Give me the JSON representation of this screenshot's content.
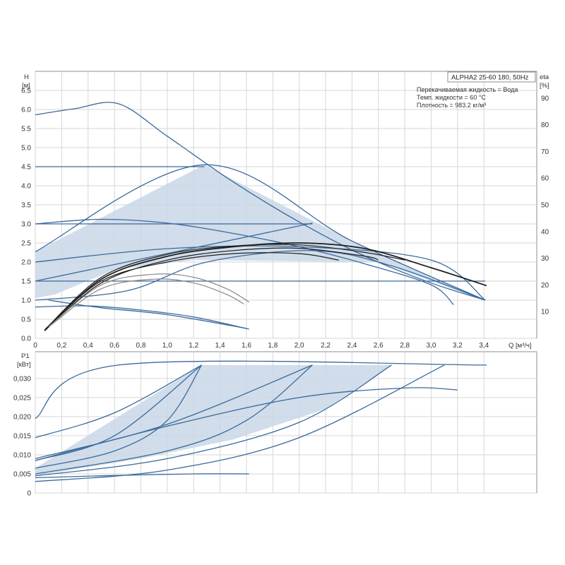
{
  "colors": {
    "curve": "#3a6a9c",
    "curve_dark": "#274e7a",
    "fill": "#c9d7e6",
    "eta_curve": "#1f1f1f",
    "eta_light": "#888888",
    "grid": "#d6d6d6",
    "frame": "#8c8c8c"
  },
  "chart_data": [
    {
      "id": "head",
      "type": "line",
      "model_label": "ALPHA2 25-60 180, 50Hz",
      "info_lines": [
        "Перекачиваемая жидкость = Вода",
        "Темп. жидкости = 60 °C",
        "Плотность = 983.2 кг/м³"
      ],
      "y_label_line1": "H",
      "y_label_line2": "[м]",
      "y2_label_line1": "eta",
      "y2_label_line2": "[%]",
      "x_label": "Q [м³/ч]",
      "xlim": [
        0,
        3.8
      ],
      "ylim": [
        0,
        7.0
      ],
      "y2lim": [
        0,
        100
      ],
      "x_ticks": [
        "0",
        "0,2",
        "0,4",
        "0,6",
        "0,8",
        "1,0",
        "1,2",
        "1,4",
        "1,6",
        "1,8",
        "2,0",
        "2,2",
        "2,4",
        "2,6",
        "2,8",
        "3,0",
        "3,2",
        "3,4"
      ],
      "y_ticks": [
        "0.0",
        "0.5",
        "1.0",
        "1.5",
        "2.0",
        "2.5",
        "3.0",
        "3.5",
        "4.0",
        "4.5",
        "5.0",
        "5.5",
        "6.0",
        "6.5"
      ],
      "y2_ticks": [
        "10",
        "20",
        "30",
        "40",
        "50",
        "60",
        "70",
        "80",
        "90"
      ],
      "area": {
        "points": [
          [
            0,
            2.27
          ],
          [
            1.28,
            4.55
          ],
          [
            2.4,
            2.55
          ],
          [
            3.4,
            1.0
          ],
          [
            2.6,
            2.0
          ],
          [
            1.2,
            2.05
          ],
          [
            0.6,
            1.8
          ],
          [
            0.15,
            1.15
          ],
          [
            0,
            1.05
          ]
        ]
      },
      "series": [
        {
          "points": [
            [
              0,
              5.86
            ],
            [
              0.3,
              6.02
            ],
            [
              0.63,
              6.15
            ],
            [
              1.0,
              5.3
            ],
            [
              1.5,
              4.1
            ],
            [
              2.0,
              3.05
            ],
            [
              2.5,
              2.15
            ],
            [
              3.0,
              1.45
            ],
            [
              3.41,
              1.0
            ]
          ]
        },
        {
          "points": [
            [
              0,
              4.5
            ],
            [
              1.28,
              4.5
            ]
          ]
        },
        {
          "points": [
            [
              0,
              2.27
            ],
            [
              1.28,
              4.55
            ],
            [
              2.4,
              2.55
            ],
            [
              3.41,
              1.0
            ]
          ]
        },
        {
          "points": [
            [
              0,
              3.0
            ],
            [
              2.1,
              3.0
            ]
          ]
        },
        {
          "points": [
            [
              0,
              3.0
            ],
            [
              0.5,
              3.12
            ],
            [
              1.0,
              3.02
            ],
            [
              1.5,
              2.75
            ],
            [
              2.0,
              2.4
            ],
            [
              2.5,
              1.95
            ],
            [
              3.0,
              1.4
            ],
            [
              3.17,
              0.88
            ]
          ]
        },
        {
          "points": [
            [
              0,
              1.5
            ],
            [
              2.1,
              3.02
            ]
          ]
        },
        {
          "points": [
            [
              0,
              1.5
            ],
            [
              3.41,
              1.5
            ]
          ]
        },
        {
          "points": [
            [
              0,
              2.0
            ],
            [
              1.0,
              2.35
            ],
            [
              2.0,
              2.4
            ],
            [
              3.0,
              2.05
            ],
            [
              3.41,
              1.0
            ]
          ]
        },
        {
          "points": [
            [
              0,
              1.0
            ],
            [
              0.7,
              1.25
            ],
            [
              1.3,
              2.0
            ],
            [
              2.1,
              2.3
            ],
            [
              2.7,
              1.9
            ],
            [
              3.41,
              1.0
            ]
          ]
        },
        {
          "points": [
            [
              0,
              0.82
            ],
            [
              0.4,
              0.85
            ],
            [
              0.8,
              0.74
            ],
            [
              1.2,
              0.56
            ],
            [
              1.62,
              0.24
            ]
          ]
        },
        {
          "points": [
            [
              0.1,
              1.0
            ],
            [
              0.5,
              0.8
            ],
            [
              1.0,
              0.62
            ],
            [
              1.6,
              0.26
            ]
          ]
        }
      ],
      "eta_series": [
        {
          "points": [
            [
              0.07,
              0.2
            ],
            [
              0.5,
              1.55
            ],
            [
              1.0,
              2.15
            ],
            [
              1.5,
              2.4
            ],
            [
              2.0,
              2.5
            ],
            [
              2.5,
              2.35
            ],
            [
              3.0,
              1.85
            ],
            [
              3.42,
              1.38
            ]
          ]
        },
        {
          "points": [
            [
              0.07,
              0.22
            ],
            [
              0.5,
              1.6
            ],
            [
              1.0,
              2.2
            ],
            [
              1.5,
              2.42
            ],
            [
              2.0,
              2.45
            ],
            [
              2.5,
              2.25
            ],
            [
              2.8,
              2.05
            ]
          ]
        },
        {
          "points": [
            [
              0.07,
              0.2
            ],
            [
              0.5,
              1.45
            ],
            [
              1.0,
              2.05
            ],
            [
              1.5,
              2.3
            ],
            [
              2.0,
              2.36
            ],
            [
              2.5,
              2.15
            ],
            [
              2.6,
              2.05
            ]
          ]
        },
        {
          "points": [
            [
              0.08,
              0.25
            ],
            [
              0.5,
              1.5
            ],
            [
              1.0,
              2.0
            ],
            [
              1.5,
              2.22
            ],
            [
              2.0,
              2.22
            ],
            [
              2.3,
              2.05
            ]
          ]
        },
        {
          "points": [
            [
              0.1,
              0.3
            ],
            [
              0.5,
              1.4
            ],
            [
              0.9,
              1.68
            ],
            [
              1.2,
              1.6
            ],
            [
              1.45,
              1.3
            ],
            [
              1.62,
              0.95
            ]
          ]
        },
        {
          "points": [
            [
              0.12,
              0.35
            ],
            [
              0.5,
              1.3
            ],
            [
              0.9,
              1.55
            ],
            [
              1.2,
              1.45
            ],
            [
              1.45,
              1.15
            ],
            [
              1.58,
              0.9
            ]
          ]
        }
      ]
    },
    {
      "id": "power",
      "type": "line",
      "y_label_line1": "P1",
      "y_label_line2": "[кВт]",
      "xlim": [
        0,
        3.8
      ],
      "ylim": [
        0,
        0.037
      ],
      "y_ticks": [
        "0",
        "0,005",
        "0,010",
        "0,015",
        "0,020",
        "0,025",
        "0,030"
      ],
      "area": {
        "points": [
          [
            0,
            0.0065
          ],
          [
            1.26,
            0.0335
          ],
          [
            2.7,
            0.0335
          ],
          [
            2.2,
            0.022
          ],
          [
            1.5,
            0.014
          ],
          [
            0.8,
            0.009
          ],
          [
            0,
            0.0045
          ]
        ]
      },
      "series": [
        {
          "points": [
            [
              0,
              0.0195
            ],
            [
              0.63,
              0.0335
            ],
            [
              3.42,
              0.0335
            ]
          ]
        },
        {
          "points": [
            [
              0,
              0.0145
            ],
            [
              0.6,
              0.021
            ],
            [
              1.26,
              0.0335
            ]
          ]
        },
        {
          "points": [
            [
              0,
              0.0085
            ],
            [
              0.6,
              0.015
            ],
            [
              1.26,
              0.0335
            ]
          ]
        },
        {
          "points": [
            [
              0,
              0.0065
            ],
            [
              0.6,
              0.011
            ],
            [
              1.0,
              0.019
            ],
            [
              1.26,
              0.0335
            ]
          ]
        },
        {
          "points": [
            [
              0,
              0.009
            ],
            [
              1.0,
              0.018
            ],
            [
              2.1,
              0.0335
            ]
          ]
        },
        {
          "points": [
            [
              0,
              0.005
            ],
            [
              1.0,
              0.011
            ],
            [
              1.6,
              0.019
            ],
            [
              2.1,
              0.0335
            ]
          ]
        },
        {
          "points": [
            [
              0,
              0.0045
            ],
            [
              1.0,
              0.009
            ],
            [
              2.0,
              0.0185
            ],
            [
              2.7,
              0.0335
            ]
          ]
        },
        {
          "points": [
            [
              0,
              0.003
            ],
            [
              1.0,
              0.006
            ],
            [
              2.0,
              0.0145
            ],
            [
              3.1,
              0.0335
            ]
          ]
        },
        {
          "points": [
            [
              0,
              0.0085
            ],
            [
              1.0,
              0.0175
            ],
            [
              2.0,
              0.025
            ],
            [
              2.8,
              0.0275
            ],
            [
              3.2,
              0.027
            ]
          ]
        },
        {
          "points": [
            [
              0,
              0.004
            ],
            [
              0.5,
              0.0045
            ],
            [
              1.2,
              0.005
            ],
            [
              1.62,
              0.005
            ]
          ]
        }
      ]
    }
  ]
}
